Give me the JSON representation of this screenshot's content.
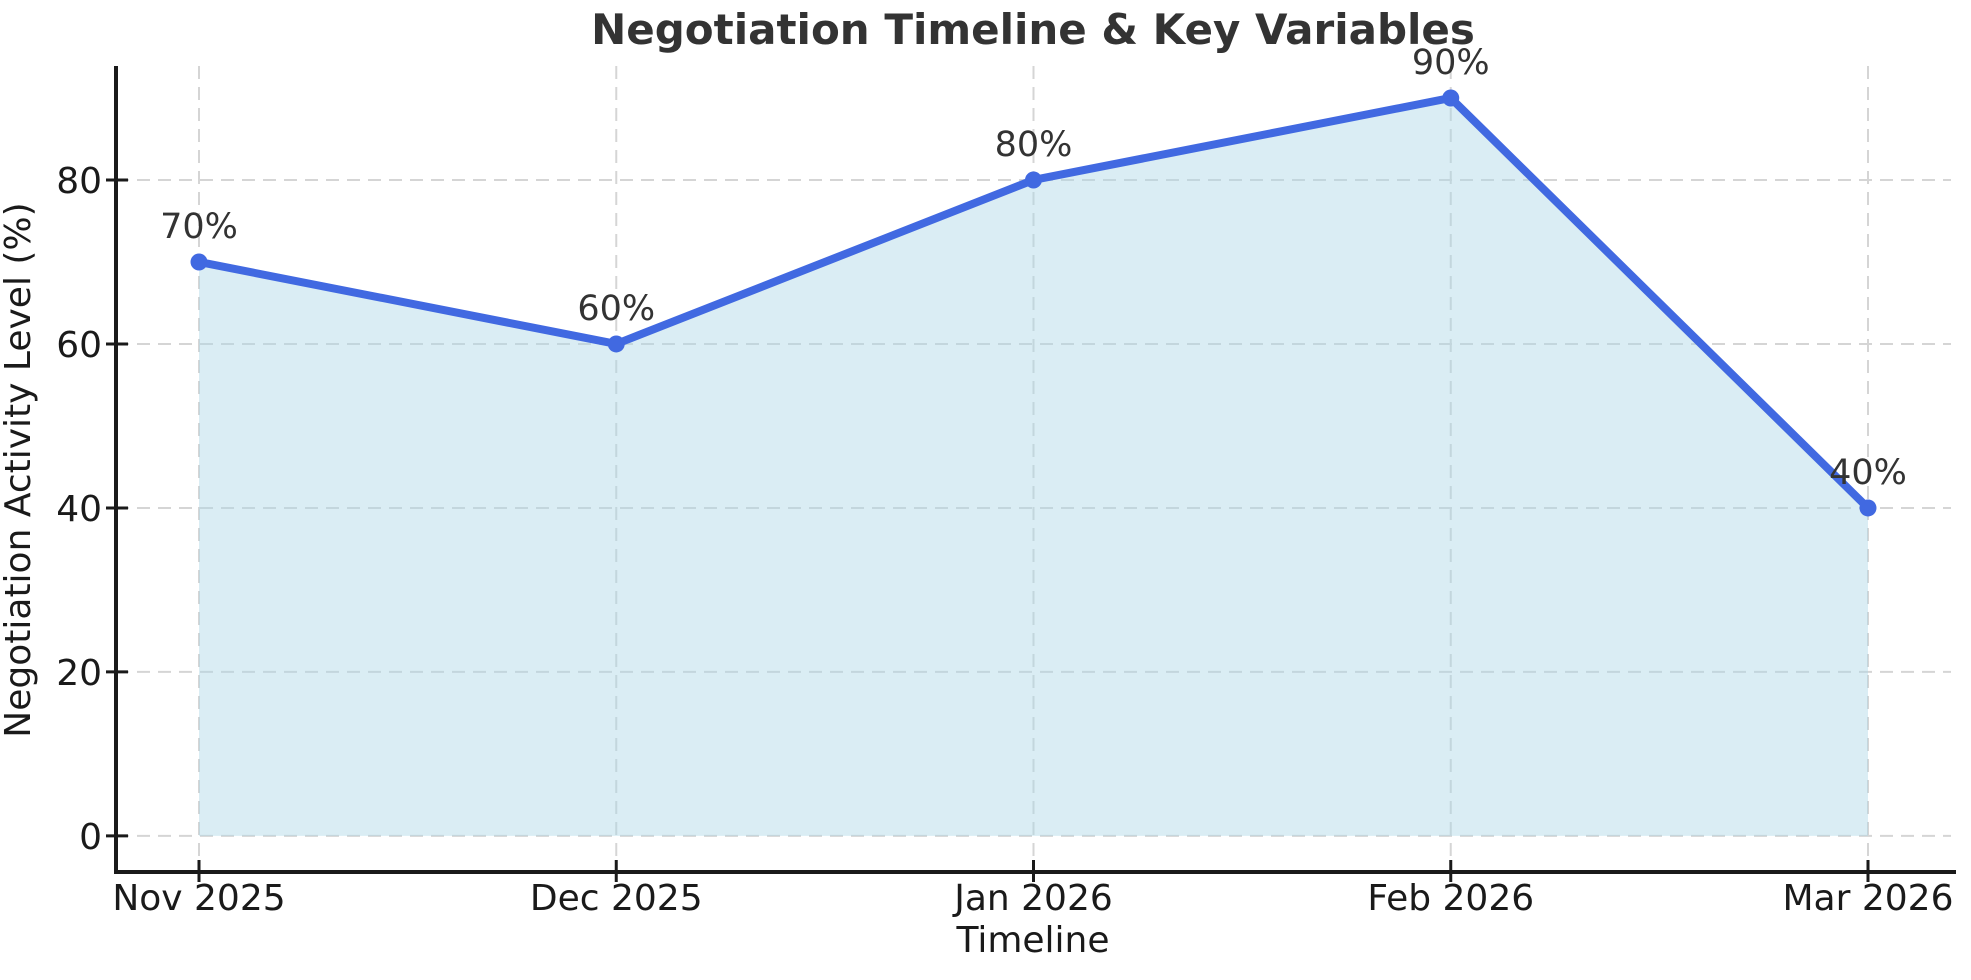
{
  "chart_data": {
    "type": "line",
    "title": "Negotiation Timeline & Key Variables",
    "xlabel": "Timeline",
    "ylabel": "Negotiation Activity Level (%)",
    "categories": [
      "Nov 2025",
      "Dec 2025",
      "Jan 2026",
      "Feb 2026",
      "Mar 2026"
    ],
    "values": [
      70,
      60,
      80,
      90,
      40
    ],
    "point_labels": [
      "70%",
      "60%",
      "80%",
      "90%",
      "40%"
    ],
    "yticks": [
      0,
      20,
      40,
      60,
      80
    ],
    "ylim": [
      -4.4,
      93.9
    ],
    "grid": "dashed",
    "legend_position": "none",
    "area_fill": true,
    "colors": {
      "line": "#4169E1",
      "marker": "#4169E1",
      "area": "rgba(173,216,230,0.45)",
      "grid": "#d5d5d5",
      "spine": "#1a1a1a",
      "title": "#333333",
      "text": "#1a1a1a"
    }
  }
}
